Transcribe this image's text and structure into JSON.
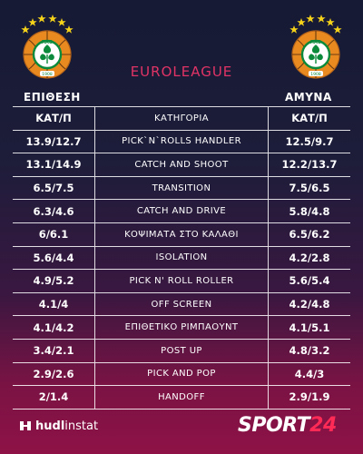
{
  "header": {
    "competition": "EUROLEAGUE",
    "logo_left_text": "ΠΑΟ",
    "logo_right_text": "ΠΑΟ",
    "logo_year": "1908",
    "attack_label": "ΕΠΙΘΕΣΗ",
    "defense_label": "ΑΜΥΝΑ"
  },
  "table": {
    "col_attack": "ΚΑΤ/Π",
    "col_category": "ΚΑΤΗΓΟΡΙΑ",
    "col_defense": "ΚΑΤ/Π",
    "rows": [
      {
        "attack": "13.9/12.7",
        "category": "PICK`N`ROLLS HANDLER",
        "defense": "12.5/9.7"
      },
      {
        "attack": "13.1/14.9",
        "category": "CATCH AND SHOOT",
        "defense": "12.2/13.7"
      },
      {
        "attack": "6.5/7.5",
        "category": "TRANSITION",
        "defense": "7.5/6.5"
      },
      {
        "attack": "6.3/4.6",
        "category": "CATCH AND DRIVE",
        "defense": "5.8/4.8"
      },
      {
        "attack": "6/6.1",
        "category": "ΚΟΨΙΜΑΤΑ ΣΤΟ ΚΑΛΑΘΙ",
        "defense": "6.5/6.2"
      },
      {
        "attack": "5.6/4.4",
        "category": "ISOLATION",
        "defense": "4.2/2.8"
      },
      {
        "attack": "4.9/5.2",
        "category": "PICK N' ROLL ROLLER",
        "defense": "5.6/5.4"
      },
      {
        "attack": "4.1/4",
        "category": "OFF SCREEN",
        "defense": "4.2/4.8"
      },
      {
        "attack": "4.1/4.2",
        "category": "ΕΠΙΘΕΤΙΚΟ ΡΙΜΠΑΟΥΝΤ",
        "defense": "4.1/5.1"
      },
      {
        "attack": "3.4/2.1",
        "category": "POST UP",
        "defense": "4.8/3.2"
      },
      {
        "attack": "2.9/2.6",
        "category": "PICK AND POP",
        "defense": "4.4/3"
      },
      {
        "attack": "2/1.4",
        "category": "HANDOFF",
        "defense": "2.9/1.9"
      }
    ]
  },
  "footer": {
    "hudl_brand": "hudl",
    "hudl_suffix": "instat",
    "sport_word": "SPORT",
    "sport_num": "24"
  },
  "colors": {
    "accent": "#e23366",
    "logo_green": "#0a8a3a",
    "logo_orange": "#e88a1f",
    "star_yellow": "#f5d21a"
  }
}
